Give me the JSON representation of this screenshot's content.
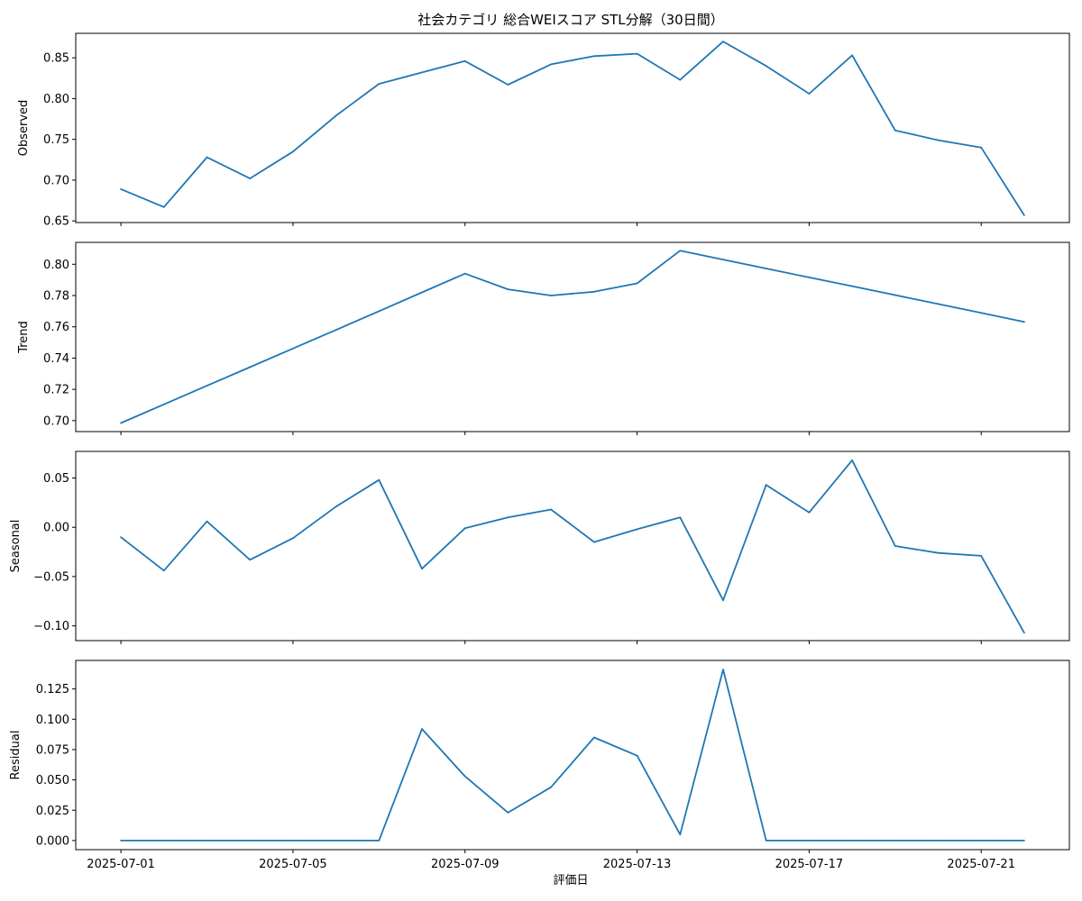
{
  "title": "社会カテゴリ 総合WEIスコア STL分解（30日間）",
  "xlabel": "評価日",
  "x_ticks": [
    "2025-07-01",
    "2025-07-05",
    "2025-07-09",
    "2025-07-13",
    "2025-07-17",
    "2025-07-21"
  ],
  "line_color": "#1f77b4",
  "chart_data": [
    {
      "type": "line",
      "ylabel": "Observed",
      "x": [
        "2025-07-01",
        "2025-07-02",
        "2025-07-03",
        "2025-07-04",
        "2025-07-05",
        "2025-07-06",
        "2025-07-07",
        "2025-07-08",
        "2025-07-09",
        "2025-07-10",
        "2025-07-11",
        "2025-07-12",
        "2025-07-13",
        "2025-07-14",
        "2025-07-15",
        "2025-07-16",
        "2025-07-17",
        "2025-07-18",
        "2025-07-19",
        "2025-07-20",
        "2025-07-21",
        "2025-07-22"
      ],
      "values": [
        0.689,
        0.667,
        0.728,
        0.702,
        0.735,
        0.779,
        0.818,
        0.832,
        0.846,
        0.817,
        0.842,
        0.852,
        0.855,
        0.823,
        0.87,
        0.84,
        0.806,
        0.853,
        0.761,
        0.749,
        0.74,
        0.657
      ],
      "ylim": [
        0.648,
        0.88
      ],
      "y_ticks": [
        "0.65",
        "0.70",
        "0.75",
        "0.80",
        "0.85"
      ]
    },
    {
      "type": "line",
      "ylabel": "Trend",
      "x": [
        "2025-07-01",
        "2025-07-02",
        "2025-07-03",
        "2025-07-04",
        "2025-07-05",
        "2025-07-06",
        "2025-07-07",
        "2025-07-08",
        "2025-07-09",
        "2025-07-10",
        "2025-07-11",
        "2025-07-12",
        "2025-07-13",
        "2025-07-14",
        "2025-07-15",
        "2025-07-16",
        "2025-07-17",
        "2025-07-18",
        "2025-07-19",
        "2025-07-20",
        "2025-07-21",
        "2025-07-22"
      ],
      "values": [
        0.6985,
        0.7104,
        0.7223,
        0.7342,
        0.7461,
        0.758,
        0.77,
        0.782,
        0.794,
        0.784,
        0.78,
        0.7824,
        0.7878,
        0.8087,
        0.803,
        0.7973,
        0.7916,
        0.786,
        0.7803,
        0.7746,
        0.7689,
        0.7632
      ],
      "ylim": [
        0.693,
        0.814
      ],
      "y_ticks": [
        "0.70",
        "0.72",
        "0.74",
        "0.76",
        "0.78",
        "0.80"
      ]
    },
    {
      "type": "line",
      "ylabel": "Seasonal",
      "x": [
        "2025-07-01",
        "2025-07-02",
        "2025-07-03",
        "2025-07-04",
        "2025-07-05",
        "2025-07-06",
        "2025-07-07",
        "2025-07-08",
        "2025-07-09",
        "2025-07-10",
        "2025-07-11",
        "2025-07-12",
        "2025-07-13",
        "2025-07-14",
        "2025-07-15",
        "2025-07-16",
        "2025-07-17",
        "2025-07-18",
        "2025-07-19",
        "2025-07-20",
        "2025-07-21",
        "2025-07-22"
      ],
      "values": [
        -0.01,
        -0.044,
        0.006,
        -0.033,
        -0.011,
        0.021,
        0.048,
        -0.042,
        -0.001,
        0.01,
        0.018,
        -0.015,
        -0.002,
        0.01,
        -0.074,
        0.043,
        0.015,
        0.068,
        -0.019,
        -0.026,
        -0.029,
        -0.107
      ],
      "ylim": [
        -0.115,
        0.077
      ],
      "y_ticks": [
        "−0.10",
        "−0.05",
        "0.00",
        "0.05"
      ]
    },
    {
      "type": "line",
      "ylabel": "Residual",
      "x": [
        "2025-07-01",
        "2025-07-02",
        "2025-07-03",
        "2025-07-04",
        "2025-07-05",
        "2025-07-06",
        "2025-07-07",
        "2025-07-08",
        "2025-07-09",
        "2025-07-10",
        "2025-07-11",
        "2025-07-12",
        "2025-07-13",
        "2025-07-14",
        "2025-07-15",
        "2025-07-16",
        "2025-07-17",
        "2025-07-18",
        "2025-07-19",
        "2025-07-20",
        "2025-07-21",
        "2025-07-22"
      ],
      "values": [
        0.0,
        0.0,
        0.0,
        0.0,
        0.0,
        0.0,
        0.0,
        0.092,
        0.053,
        0.023,
        0.044,
        0.085,
        0.07,
        0.005,
        0.141,
        0.0,
        0.0,
        0.0,
        0.0,
        0.0,
        0.0,
        0.0
      ],
      "ylim": [
        -0.0075,
        0.1485
      ],
      "y_ticks": [
        "0.000",
        "0.025",
        "0.050",
        "0.075",
        "0.100",
        "0.125"
      ]
    }
  ]
}
